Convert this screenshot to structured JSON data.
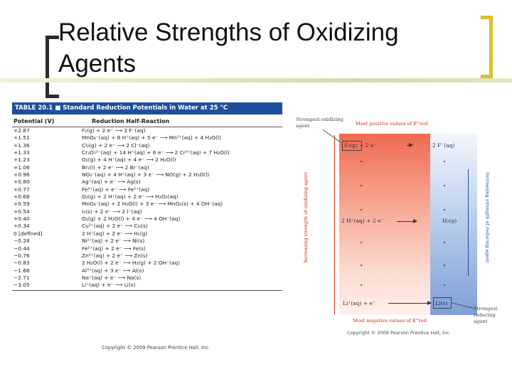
{
  "slide": {
    "title": "Relative Strengths of Oxidizing Agents"
  },
  "table": {
    "heading": "TABLE 20.1 ■  Standard Reduction Potentials in Water at 25 °C",
    "col_potential": "Potential (V)",
    "col_reaction": "Reduction Half-Reaction",
    "rows": [
      {
        "potential": "+2.87",
        "reaction": "F₂(g) + 2 e⁻ ⟶ 2 F⁻(aq)"
      },
      {
        "potential": "+1.51",
        "reaction": "MnO₄⁻(aq) + 8 H⁺(aq) + 5 e⁻ ⟶ Mn²⁺(aq) + 4 H₂O(l)"
      },
      {
        "potential": "+1.36",
        "reaction": "Cl₂(g) + 2 e⁻ ⟶ 2 Cl⁻(aq)"
      },
      {
        "potential": "+1.33",
        "reaction": "Cr₂O₇²⁻(aq) + 14 H⁺(aq) + 6 e⁻ ⟶ 2 Cr³⁺(aq) + 7 H₂O(l)"
      },
      {
        "potential": "+1.23",
        "reaction": "O₂(g) + 4 H⁺(aq) + 4 e⁻ ⟶ 2 H₂O(l)"
      },
      {
        "potential": "+1.06",
        "reaction": "Br₂(l) + 2 e⁻ ⟶ 2 Br⁻(aq)"
      },
      {
        "potential": "+0.96",
        "reaction": "NO₃⁻(aq) + 4 H⁺(aq) + 3 e⁻ ⟶ NO(g) + 2 H₂O(l)"
      },
      {
        "potential": "+0.80",
        "reaction": "Ag⁺(aq) + e⁻ ⟶ Ag(s)"
      },
      {
        "potential": "+0.77",
        "reaction": "Fe³⁺(aq) + e⁻ ⟶ Fe²⁺(aq)"
      },
      {
        "potential": "+0.68",
        "reaction": "O₂(g) + 2 H⁺(aq) + 2 e⁻ ⟶ H₂O₂(aq)"
      },
      {
        "potential": "+0.59",
        "reaction": "MnO₄⁻(aq) + 2 H₂O(l) + 3 e⁻ ⟶ MnO₂(s) + 4 OH⁻(aq)"
      },
      {
        "potential": "+0.54",
        "reaction": "I₂(s) + 2 e⁻ ⟶ 2 I⁻(aq)"
      },
      {
        "potential": "+0.40",
        "reaction": "O₂(g) + 2 H₂O(l) + 4 e⁻ ⟶ 4 OH⁻(aq)"
      },
      {
        "potential": "+0.34",
        "reaction": "Cu²⁺(aq) + 2 e⁻ ⟶ Cu(s)"
      },
      {
        "potential": "0 [defined]",
        "reaction": "2 H⁺(aq) + 2 e⁻ ⟶ H₂(g)"
      },
      {
        "potential": "−0.28",
        "reaction": "Ni²⁺(aq) + 2 e⁻ ⟶ Ni(s)"
      },
      {
        "potential": "−0.44",
        "reaction": "Fe²⁺(aq) + 2 e⁻ ⟶ Fe(s)"
      },
      {
        "potential": "−0.76",
        "reaction": "Zn²⁺(aq) + 2 e⁻ ⟶ Zn(s)"
      },
      {
        "potential": "−0.83",
        "reaction": "2 H₂O(l) + 2 e⁻ ⟶ H₂(g) + 2 OH⁻(aq)"
      },
      {
        "potential": "−1.66",
        "reaction": "Al³⁺(aq) + 3 e⁻ ⟶ Al(s)"
      },
      {
        "potential": "−2.71",
        "reaction": "Na⁺(aq) + e⁻ ⟶ Na(s)"
      },
      {
        "potential": "−3.05",
        "reaction": "Li⁺(aq) + e⁻ ⟶ Li(s)"
      }
    ],
    "copyright": "Copyright © 2009 Pearson Prentice Hall, Inc."
  },
  "diagram": {
    "strongest_oxidizing": "Strongest oxidizing agent",
    "most_positive": "Most positive values of E°red",
    "most_negative": "Most negative values of E°red",
    "top_left_cell": "F₂(g) + 2 e⁻",
    "top_right_cell": "2 F⁻(aq)",
    "mid_left_cell": "2 H⁺(aq) + 2 e⁻",
    "mid_right_cell": "H₂(g)",
    "bottom_left_cell": "Li⁺(aq) + e⁻",
    "bottom_right_cell": "Li(s)",
    "left_axis": "Increasing strength of oxidizing agent",
    "right_axis": "Increasing strength of reducing agent",
    "strongest_reducing": "Strongest reducing agent",
    "copyright": "Copyright © 2009 Pearson Prentice Hall, Inc."
  }
}
